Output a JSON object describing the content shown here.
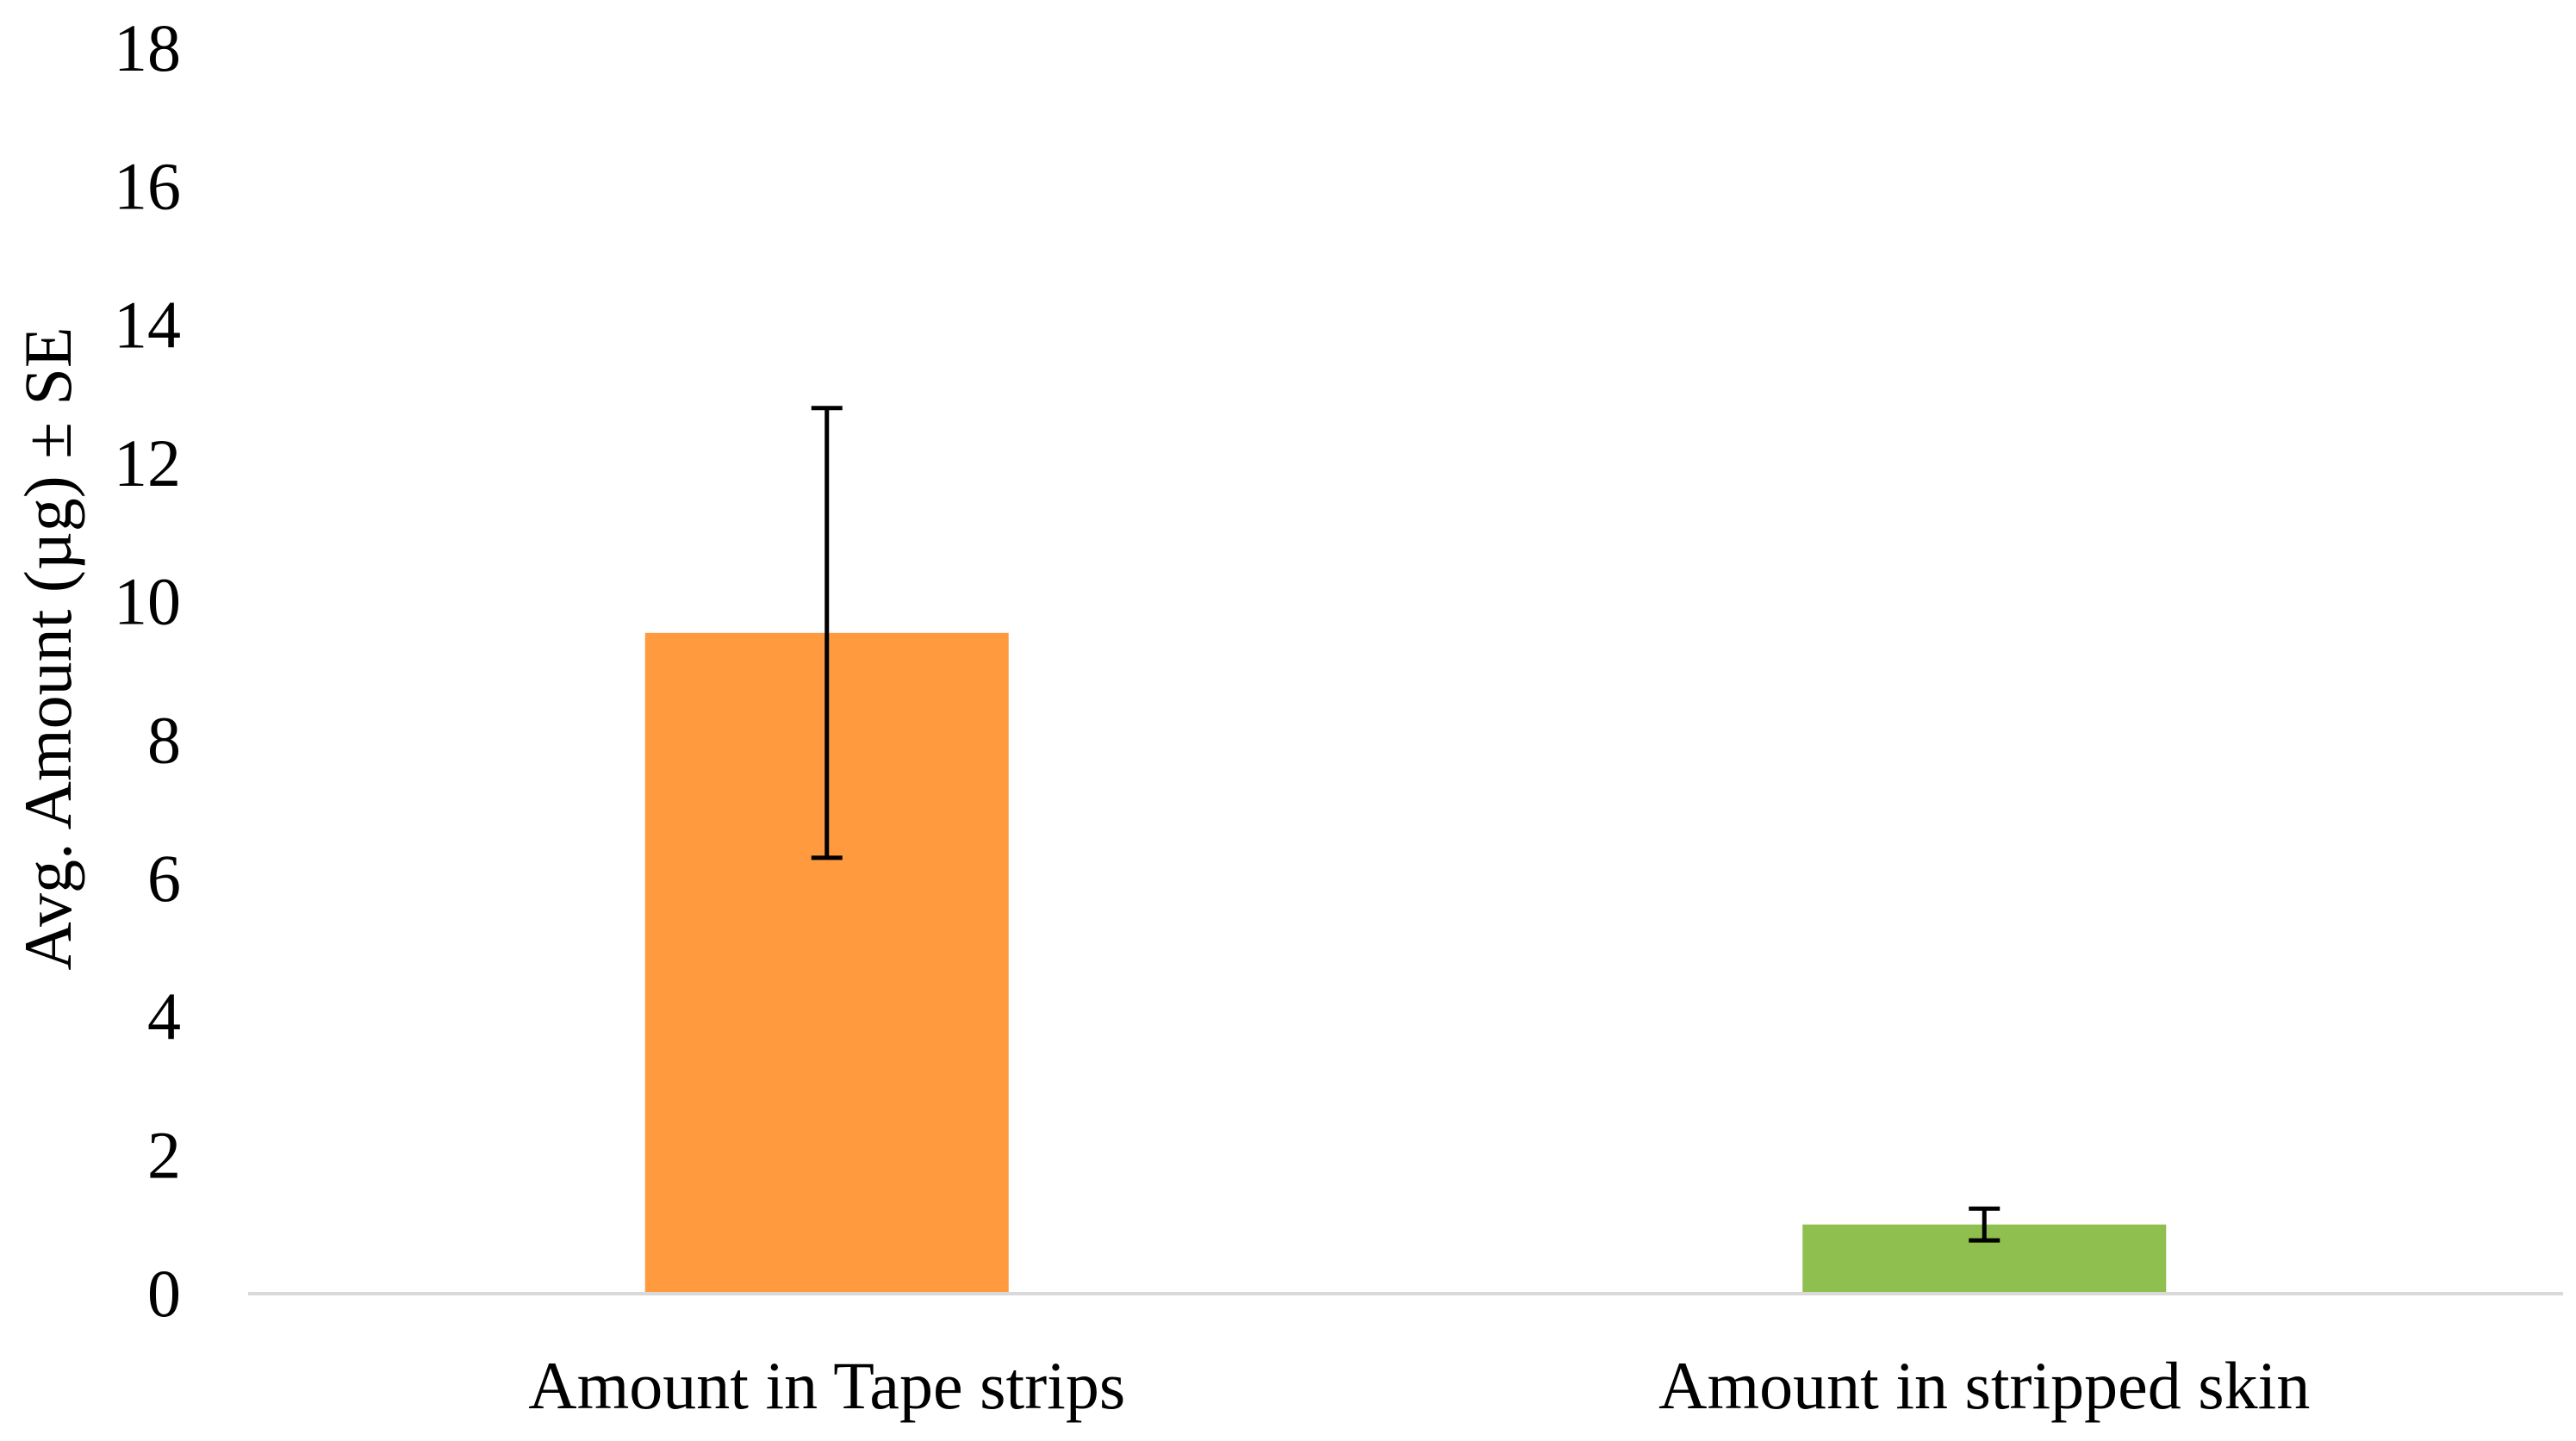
{
  "chart_data": {
    "type": "bar",
    "title": "",
    "xlabel": "",
    "ylabel": "Avg. Amount (µg) ± SE",
    "ylim": [
      0,
      18
    ],
    "yticks": [
      0,
      2,
      4,
      6,
      8,
      10,
      12,
      14,
      16,
      18
    ],
    "categories": [
      "Amount in Tape strips",
      "Amount in stripped skin"
    ],
    "values": [
      9.55,
      1.0
    ],
    "error": [
      3.25,
      0.23
    ],
    "colors": [
      "#FF9A3E",
      "#8FBF4E"
    ],
    "grid": false,
    "legend": "none"
  }
}
